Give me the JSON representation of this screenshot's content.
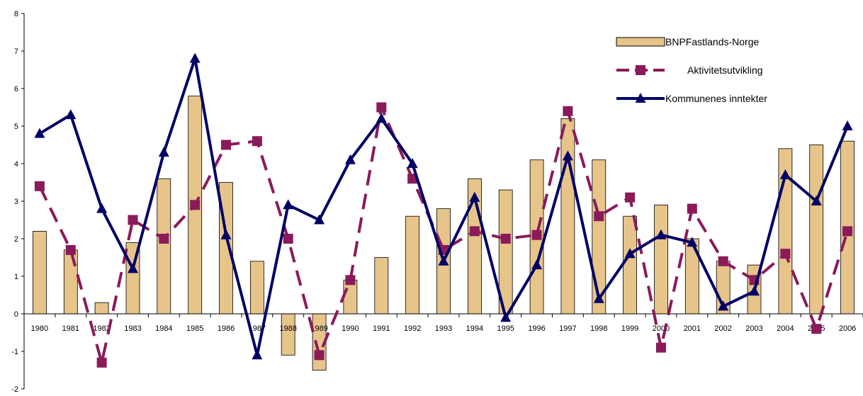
{
  "chart_data": {
    "type": "bar",
    "categories": [
      "1980",
      "1981",
      "1982",
      "1983",
      "1984",
      "1985",
      "1986",
      "1987",
      "1988",
      "1989",
      "1990",
      "1991",
      "1992",
      "1993",
      "1994",
      "1995",
      "1996",
      "1997",
      "1998",
      "1999",
      "2000",
      "2001",
      "2002",
      "2003",
      "2004",
      "2005",
      "2006"
    ],
    "ylim": [
      -2,
      8
    ],
    "yticks": [
      "-2",
      "-1",
      "0",
      "1",
      "2",
      "3",
      "4",
      "5",
      "6",
      "7",
      "8"
    ],
    "grid": false,
    "legend_position": "top-right",
    "series": [
      {
        "name": "BNPFastlands-Norge",
        "type": "bar",
        "color": "#E6C48A",
        "values": [
          2.2,
          1.7,
          0.3,
          1.9,
          3.6,
          5.8,
          3.5,
          1.4,
          -1.1,
          -1.5,
          0.9,
          1.5,
          2.6,
          2.8,
          3.6,
          3.3,
          4.1,
          5.2,
          4.1,
          2.6,
          2.9,
          2.0,
          1.4,
          1.3,
          4.4,
          4.5,
          4.6
        ]
      },
      {
        "name": "Aktivitetsutvikling",
        "type": "line",
        "style": "dashed",
        "marker": "square",
        "color": "#8B1A5A",
        "values": [
          3.4,
          1.7,
          -1.3,
          2.5,
          2.0,
          2.9,
          4.5,
          4.6,
          2.0,
          -1.1,
          0.9,
          5.5,
          3.6,
          1.7,
          2.2,
          2.0,
          2.1,
          5.4,
          2.6,
          3.1,
          -0.9,
          2.8,
          1.4,
          0.9,
          1.6,
          -0.4,
          2.2
        ]
      },
      {
        "name": "Kommunenes inntekter",
        "type": "line",
        "style": "solid",
        "marker": "triangle",
        "color": "#000066",
        "values": [
          4.8,
          5.3,
          2.8,
          1.2,
          4.3,
          6.8,
          2.1,
          -1.1,
          2.9,
          2.5,
          4.1,
          5.2,
          4.0,
          1.4,
          3.1,
          -0.1,
          1.3,
          4.2,
          0.4,
          1.6,
          2.1,
          1.9,
          0.2,
          0.6,
          3.7,
          3.0,
          5.0
        ]
      }
    ]
  }
}
